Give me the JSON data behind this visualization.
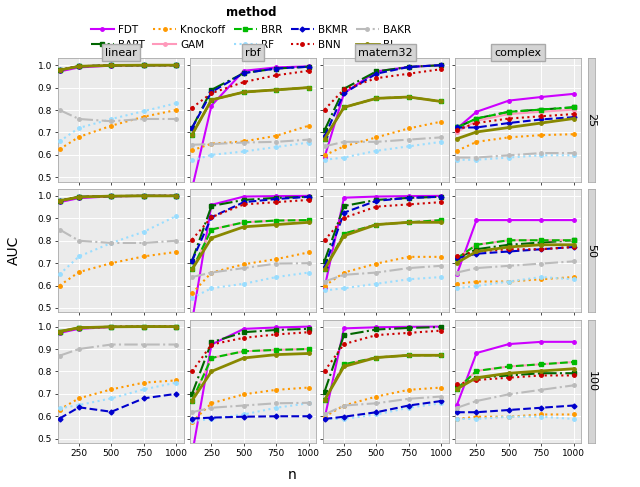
{
  "x_vals": [
    100,
    250,
    500,
    750,
    1000
  ],
  "x_ticks": [
    250,
    500,
    750,
    1000
  ],
  "col_labels": [
    "linear",
    "rbf",
    "matern32",
    "complex"
  ],
  "row_labels": [
    "25",
    "50",
    "100"
  ],
  "ylabel": "AUC",
  "xlabel": "n",
  "methods": [
    "FDT",
    "BART",
    "Knockoff",
    "GAM",
    "BRR",
    "RF",
    "BKMR",
    "BNN",
    "BAKR",
    "BL"
  ],
  "colors": {
    "FDT": "#CC00FF",
    "BART": "#006600",
    "Knockoff": "#FF9900",
    "GAM": "#FF99BB",
    "BRR": "#00BB00",
    "RF": "#99DDFF",
    "BKMR": "#0000CC",
    "BNN": "#CC0000",
    "BAKR": "#BBBBBB",
    "BL": "#888800"
  },
  "linestyles": {
    "FDT": "solid",
    "BART": "dashdot",
    "Knockoff": "dotted",
    "GAM": "solid",
    "BRR": "dashed",
    "RF": "dotted",
    "BKMR": "dashed",
    "BNN": "dotted",
    "BAKR": "dashdot",
    "BL": "solid"
  },
  "linewidths": {
    "FDT": 1.5,
    "BART": 1.5,
    "Knockoff": 1.5,
    "GAM": 1.5,
    "BRR": 1.5,
    "RF": 1.5,
    "BKMR": 1.5,
    "BNN": 1.5,
    "BAKR": 1.5,
    "BL": 2.0
  },
  "markers": {
    "FDT": "o",
    "BART": "s",
    "Knockoff": "o",
    "GAM": "o",
    "BRR": "s",
    "RF": "o",
    "BKMR": "D",
    "BNN": "o",
    "BAKR": "o",
    "BL": "o"
  },
  "markersizes": {
    "FDT": 2.5,
    "BART": 2.5,
    "Knockoff": 2.5,
    "GAM": 2.5,
    "BRR": 2.5,
    "RF": 2.5,
    "BKMR": 2.5,
    "BNN": 2.5,
    "BAKR": 2.5,
    "BL": 2.5
  },
  "legend_row1": [
    "FDT",
    "BART",
    "Knockoff",
    "GAM",
    "BRR"
  ],
  "legend_row2": [
    "RF",
    "BKMR",
    "BNN",
    "BAKR",
    "BL"
  ],
  "data": {
    "linear": {
      "25": {
        "FDT": [
          0.972,
          0.99,
          0.998,
          1.0,
          1.0
        ],
        "BART": [
          0.978,
          0.995,
          0.999,
          1.0,
          1.0
        ],
        "Knockoff": [
          0.625,
          0.68,
          0.73,
          0.77,
          0.8
        ],
        "GAM": [
          0.978,
          0.995,
          0.999,
          1.0,
          1.0
        ],
        "BRR": [
          0.978,
          0.995,
          0.999,
          1.0,
          1.0
        ],
        "RF": [
          0.66,
          0.72,
          0.76,
          0.795,
          0.83
        ],
        "BKMR": [
          0.978,
          0.995,
          0.999,
          1.0,
          1.0
        ],
        "BNN": [
          0.978,
          0.995,
          0.999,
          1.0,
          1.0
        ],
        "BAKR": [
          0.8,
          0.76,
          0.75,
          0.76,
          0.76
        ],
        "BL": [
          0.978,
          0.995,
          0.999,
          1.0,
          1.0
        ]
      },
      "50": {
        "FDT": [
          0.972,
          0.99,
          0.998,
          1.0,
          1.0
        ],
        "BART": [
          0.978,
          0.995,
          0.999,
          1.0,
          1.0
        ],
        "Knockoff": [
          0.6,
          0.66,
          0.7,
          0.73,
          0.75
        ],
        "GAM": [
          0.978,
          0.995,
          0.999,
          1.0,
          1.0
        ],
        "BRR": [
          0.978,
          0.995,
          0.999,
          1.0,
          1.0
        ],
        "RF": [
          0.65,
          0.73,
          0.79,
          0.84,
          0.91
        ],
        "BKMR": [
          0.978,
          0.995,
          0.999,
          1.0,
          1.0
        ],
        "BNN": [
          0.978,
          0.995,
          0.999,
          1.0,
          1.0
        ],
        "BAKR": [
          0.85,
          0.8,
          0.79,
          0.79,
          0.8
        ],
        "BL": [
          0.978,
          0.995,
          0.999,
          1.0,
          1.0
        ]
      },
      "100": {
        "FDT": [
          0.972,
          0.99,
          0.998,
          1.0,
          1.0
        ],
        "BART": [
          0.978,
          0.995,
          0.999,
          1.0,
          1.0
        ],
        "Knockoff": [
          0.63,
          0.68,
          0.72,
          0.75,
          0.76
        ],
        "GAM": [
          0.978,
          0.995,
          0.999,
          1.0,
          1.0
        ],
        "BRR": [
          0.978,
          0.995,
          0.999,
          1.0,
          1.0
        ],
        "RF": [
          0.635,
          0.65,
          0.68,
          0.72,
          0.75
        ],
        "BKMR": [
          0.59,
          0.64,
          0.62,
          0.68,
          0.7
        ],
        "BNN": [
          0.978,
          0.995,
          0.999,
          1.0,
          1.0
        ],
        "BAKR": [
          0.87,
          0.9,
          0.92,
          0.92,
          0.92
        ],
        "BL": [
          0.978,
          0.995,
          0.999,
          1.0,
          1.0
        ]
      }
    },
    "rbf": {
      "25": {
        "FDT": [
          0.45,
          0.82,
          0.975,
          0.99,
          0.995
        ],
        "BART": [
          0.72,
          0.89,
          0.965,
          0.985,
          0.993
        ],
        "Knockoff": [
          0.62,
          0.65,
          0.66,
          0.685,
          0.73
        ],
        "GAM": [
          0.69,
          0.845,
          0.88,
          0.89,
          0.9
        ],
        "BRR": [
          0.69,
          0.845,
          0.88,
          0.89,
          0.9
        ],
        "RF": [
          0.575,
          0.6,
          0.615,
          0.635,
          0.655
        ],
        "BKMR": [
          0.72,
          0.88,
          0.965,
          0.985,
          0.993
        ],
        "BNN": [
          0.81,
          0.875,
          0.925,
          0.955,
          0.975
        ],
        "BAKR": [
          0.645,
          0.648,
          0.655,
          0.658,
          0.668
        ],
        "BL": [
          0.69,
          0.845,
          0.88,
          0.89,
          0.9
        ]
      },
      "50": {
        "FDT": [
          0.44,
          0.96,
          0.997,
          0.999,
          1.0
        ],
        "BART": [
          0.71,
          0.955,
          0.982,
          0.991,
          0.996
        ],
        "Knockoff": [
          0.565,
          0.658,
          0.695,
          0.718,
          0.748
        ],
        "GAM": [
          0.672,
          0.85,
          0.882,
          0.89,
          0.892
        ],
        "BRR": [
          0.672,
          0.85,
          0.882,
          0.89,
          0.892
        ],
        "RF": [
          0.545,
          0.588,
          0.608,
          0.638,
          0.658
        ],
        "BKMR": [
          0.71,
          0.905,
          0.972,
          0.986,
          0.996
        ],
        "BNN": [
          0.805,
          0.905,
          0.962,
          0.972,
          0.982
        ],
        "BAKR": [
          0.638,
          0.658,
          0.678,
          0.698,
          0.7
        ],
        "BL": [
          0.672,
          0.812,
          0.862,
          0.872,
          0.882
        ]
      },
      "100": {
        "FDT": [
          0.43,
          0.92,
          0.99,
          0.996,
          1.0
        ],
        "BART": [
          0.7,
          0.93,
          0.975,
          0.985,
          0.99
        ],
        "Knockoff": [
          0.575,
          0.658,
          0.698,
          0.718,
          0.728
        ],
        "GAM": [
          0.67,
          0.86,
          0.89,
          0.896,
          0.9
        ],
        "BRR": [
          0.67,
          0.86,
          0.89,
          0.896,
          0.9
        ],
        "RF": [
          0.578,
          0.588,
          0.608,
          0.638,
          0.658
        ],
        "BKMR": [
          0.59,
          0.594,
          0.598,
          0.6,
          0.6
        ],
        "BNN": [
          0.8,
          0.92,
          0.95,
          0.965,
          0.975
        ],
        "BAKR": [
          0.618,
          0.638,
          0.648,
          0.658,
          0.66
        ],
        "BL": [
          0.67,
          0.8,
          0.86,
          0.875,
          0.88
        ]
      }
    },
    "matern32": {
      "25": {
        "FDT": [
          0.59,
          0.875,
          0.972,
          0.992,
          1.0
        ],
        "BART": [
          0.71,
          0.895,
          0.972,
          0.992,
          1.0
        ],
        "Knockoff": [
          0.598,
          0.638,
          0.678,
          0.718,
          0.748
        ],
        "GAM": [
          0.672,
          0.812,
          0.852,
          0.858,
          0.838
        ],
        "BRR": [
          0.672,
          0.812,
          0.852,
          0.858,
          0.838
        ],
        "RF": [
          0.578,
          0.588,
          0.618,
          0.638,
          0.658
        ],
        "BKMR": [
          0.682,
          0.875,
          0.962,
          0.992,
          1.0
        ],
        "BNN": [
          0.802,
          0.892,
          0.942,
          0.962,
          0.982
        ],
        "BAKR": [
          0.638,
          0.658,
          0.658,
          0.668,
          0.678
        ],
        "BL": [
          0.672,
          0.812,
          0.852,
          0.858,
          0.838
        ]
      },
      "50": {
        "FDT": [
          0.59,
          0.992,
          0.997,
          0.999,
          1.0
        ],
        "BART": [
          0.71,
          0.955,
          0.982,
          0.991,
          0.996
        ],
        "Knockoff": [
          0.598,
          0.658,
          0.698,
          0.728,
          0.728
        ],
        "GAM": [
          0.672,
          0.832,
          0.872,
          0.882,
          0.892
        ],
        "BRR": [
          0.672,
          0.832,
          0.872,
          0.882,
          0.892
        ],
        "RF": [
          0.578,
          0.588,
          0.608,
          0.628,
          0.638
        ],
        "BKMR": [
          0.682,
          0.925,
          0.978,
          0.991,
          0.996
        ],
        "BNN": [
          0.802,
          0.902,
          0.952,
          0.962,
          0.972
        ],
        "BAKR": [
          0.618,
          0.648,
          0.658,
          0.678,
          0.688
        ],
        "BL": [
          0.672,
          0.822,
          0.872,
          0.882,
          0.882
        ]
      },
      "100": {
        "FDT": [
          0.59,
          0.992,
          0.997,
          0.999,
          1.0
        ],
        "BART": [
          0.71,
          0.962,
          0.987,
          0.994,
          0.998
        ],
        "Knockoff": [
          0.598,
          0.648,
          0.688,
          0.718,
          0.728
        ],
        "GAM": [
          0.672,
          0.832,
          0.862,
          0.872,
          0.872
        ],
        "BRR": [
          0.672,
          0.832,
          0.862,
          0.872,
          0.872
        ],
        "RF": [
          0.588,
          0.588,
          0.608,
          0.638,
          0.658
        ],
        "BKMR": [
          0.588,
          0.598,
          0.618,
          0.648,
          0.668
        ],
        "BNN": [
          0.802,
          0.922,
          0.962,
          0.972,
          0.982
        ],
        "BAKR": [
          0.608,
          0.648,
          0.658,
          0.678,
          0.688
        ],
        "BL": [
          0.672,
          0.822,
          0.862,
          0.872,
          0.872
        ]
      }
    },
    "complex": {
      "25": {
        "FDT": [
          0.718,
          0.792,
          0.842,
          0.858,
          0.872
        ],
        "BART": [
          0.722,
          0.762,
          0.792,
          0.802,
          0.812
        ],
        "Knockoff": [
          0.618,
          0.658,
          0.678,
          0.688,
          0.692
        ],
        "GAM": [
          0.702,
          0.752,
          0.782,
          0.792,
          0.802
        ],
        "BRR": [
          0.722,
          0.762,
          0.792,
          0.802,
          0.812
        ],
        "RF": [
          0.578,
          0.578,
          0.588,
          0.598,
          0.598
        ],
        "BKMR": [
          0.722,
          0.722,
          0.742,
          0.758,
          0.768
        ],
        "BNN": [
          0.712,
          0.742,
          0.762,
          0.772,
          0.782
        ],
        "BAKR": [
          0.588,
          0.588,
          0.598,
          0.608,
          0.608
        ],
        "BL": [
          0.672,
          0.702,
          0.722,
          0.742,
          0.762
        ]
      },
      "50": {
        "FDT": [
          0.652,
          0.892,
          0.892,
          0.892,
          0.892
        ],
        "BART": [
          0.722,
          0.762,
          0.782,
          0.792,
          0.802
        ],
        "Knockoff": [
          0.608,
          0.618,
          0.618,
          0.628,
          0.638
        ],
        "GAM": [
          0.722,
          0.782,
          0.802,
          0.802,
          0.802
        ],
        "BRR": [
          0.722,
          0.782,
          0.802,
          0.802,
          0.802
        ],
        "RF": [
          0.588,
          0.598,
          0.618,
          0.638,
          0.628
        ],
        "BKMR": [
          0.722,
          0.742,
          0.752,
          0.762,
          0.772
        ],
        "BNN": [
          0.732,
          0.752,
          0.762,
          0.762,
          0.772
        ],
        "BAKR": [
          0.658,
          0.678,
          0.688,
          0.698,
          0.708
        ],
        "BL": [
          0.702,
          0.752,
          0.772,
          0.782,
          0.782
        ]
      },
      "100": {
        "FDT": [
          0.652,
          0.882,
          0.922,
          0.932,
          0.932
        ],
        "BART": [
          0.732,
          0.772,
          0.782,
          0.792,
          0.792
        ],
        "Knockoff": [
          0.588,
          0.598,
          0.598,
          0.608,
          0.608
        ],
        "GAM": [
          0.722,
          0.802,
          0.822,
          0.832,
          0.842
        ],
        "BRR": [
          0.722,
          0.802,
          0.822,
          0.832,
          0.842
        ],
        "RF": [
          0.588,
          0.588,
          0.598,
          0.598,
          0.588
        ],
        "BKMR": [
          0.618,
          0.618,
          0.628,
          0.638,
          0.648
        ],
        "BNN": [
          0.742,
          0.762,
          0.772,
          0.782,
          0.782
        ],
        "BAKR": [
          0.638,
          0.668,
          0.698,
          0.718,
          0.738
        ],
        "BL": [
          0.722,
          0.772,
          0.792,
          0.802,
          0.812
        ]
      }
    }
  }
}
